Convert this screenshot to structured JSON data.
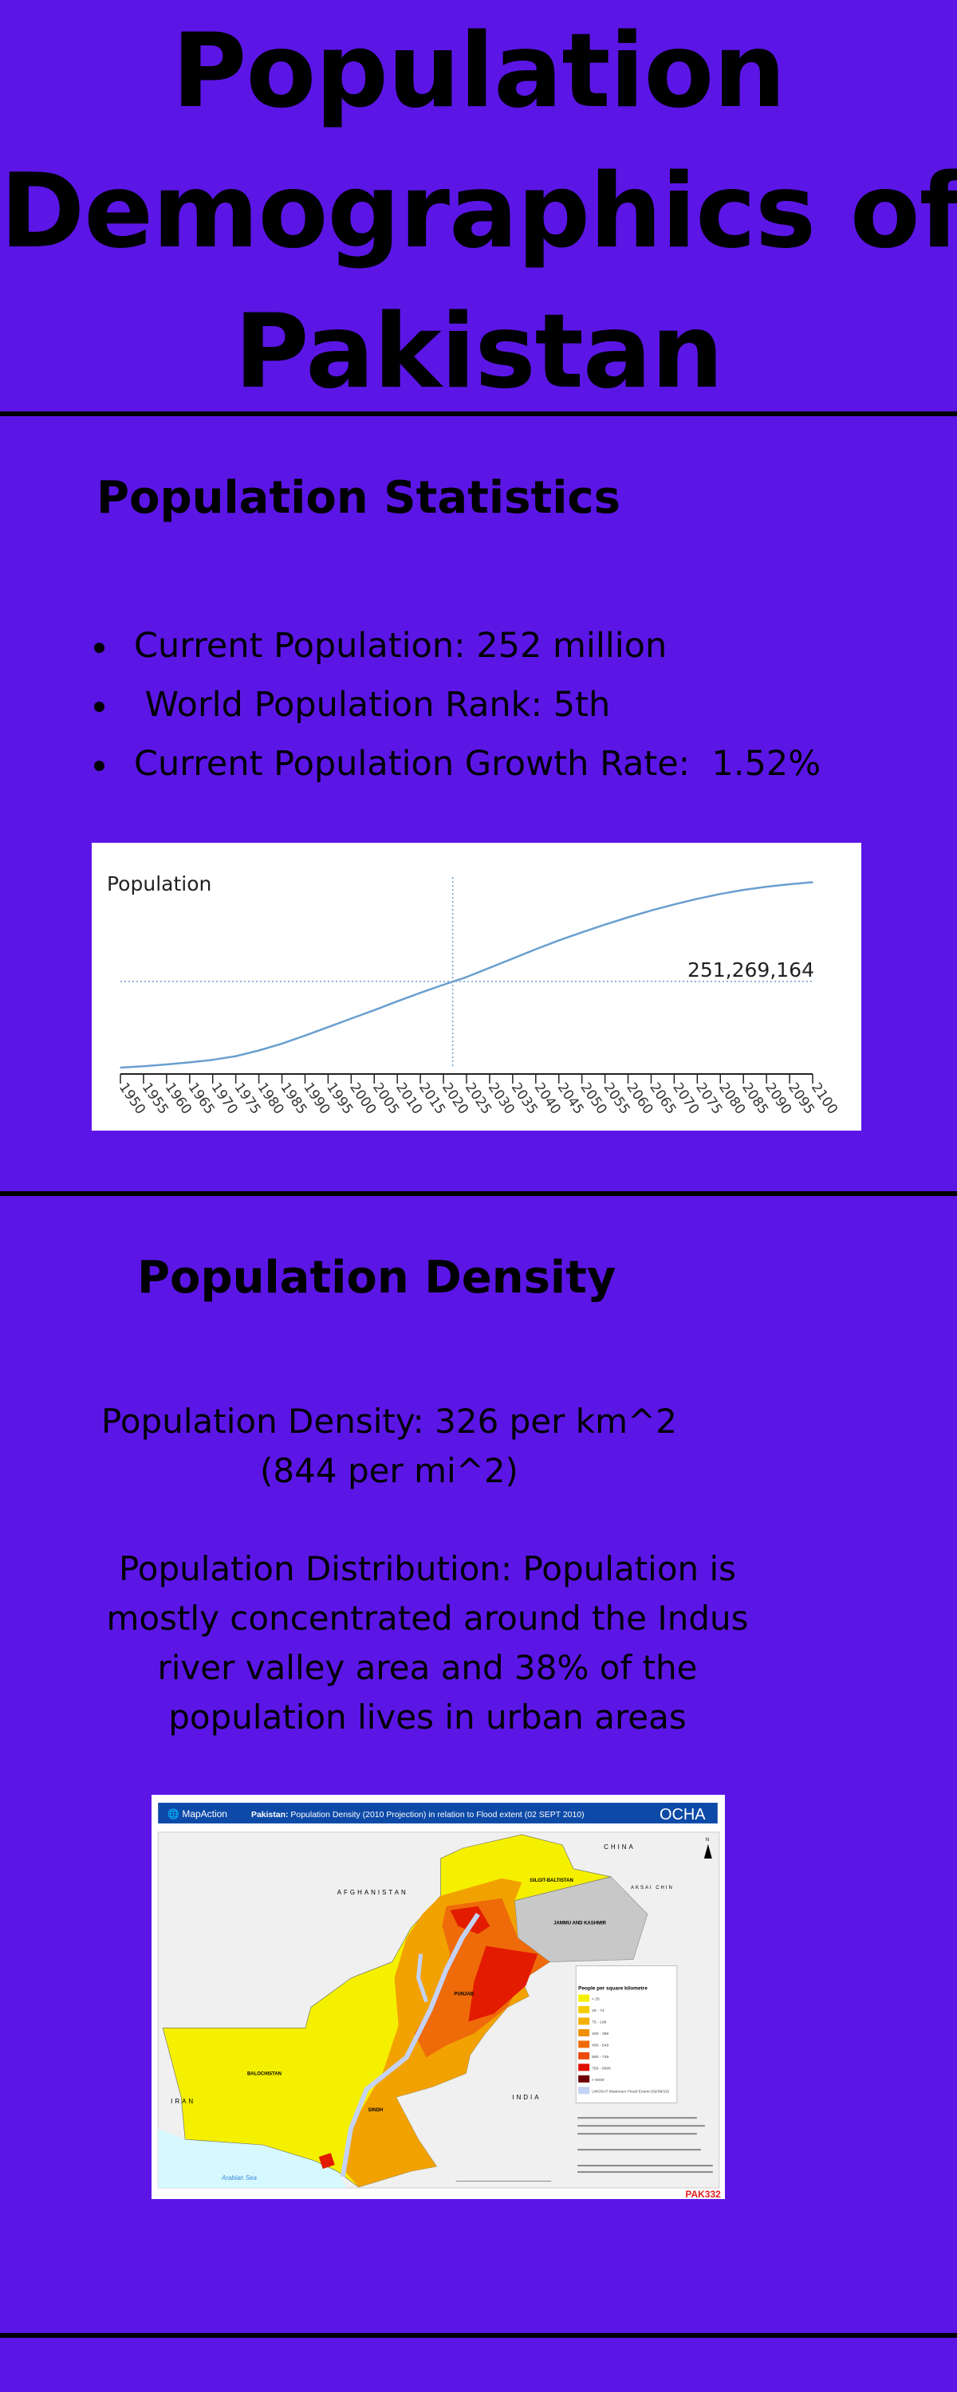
{
  "title": {
    "lines": [
      "Population",
      "Demographics of",
      "Pakistan"
    ]
  },
  "statistics": {
    "heading": "Population Statistics",
    "bullets": [
      "Current Population: 252 million",
      " World Population Rank: 5th",
      "Current Population Growth Rate:  1.52%"
    ]
  },
  "chart_data": {
    "type": "line",
    "title": "Population",
    "x": [
      1950,
      1955,
      1960,
      1965,
      1970,
      1975,
      1980,
      1985,
      1990,
      1995,
      2000,
      2005,
      2010,
      2015,
      2020,
      2025,
      2030,
      2035,
      2040,
      2045,
      2050,
      2055,
      2060,
      2065,
      2070,
      2075,
      2080,
      2085,
      2090,
      2095,
      2100
    ],
    "tick_labels": [
      "1950",
      "1955",
      "1960",
      "1965",
      "1970",
      "1975",
      "1980",
      "1985",
      "1990",
      "1995",
      "2000",
      "2005",
      "2010",
      "2015",
      "2020",
      "2025",
      "2030",
      "2035",
      "2040",
      "2045",
      "2050",
      "2055",
      "2060",
      "2065",
      "2070",
      "2075",
      "2080",
      "2085",
      "2090",
      "2095",
      "2100"
    ],
    "series": [
      {
        "values": [
          37500000,
          41000000,
          45500000,
          50500000,
          57000000,
          66000000,
          80000000,
          97000000,
          117000000,
          138000000,
          159000000,
          180000000,
          202000000,
          223000000,
          243000000,
          262000000,
          285000000,
          308000000,
          331000000,
          353000000,
          373000000,
          392000000,
          410000000,
          427000000,
          442000000,
          456000000,
          468000000,
          478000000,
          486000000,
          492000000,
          497000000
        ]
      }
    ],
    "marker": {
      "x": 2022,
      "value": 251269164,
      "label": "251,269,164"
    },
    "line_color": "#6a9fcf",
    "grid": false
  },
  "density": {
    "heading": "Population Density",
    "lines": [
      "Population Density:  326 per km^2",
      "(844 per mi^2)"
    ],
    "distribution": [
      "Population Distribution: Population is",
      "mostly concentrated around the Indus",
      "river valley area and 38% of the",
      "population lives in urban areas"
    ]
  },
  "map": {
    "brand": "MapAction",
    "title_bold": "Pakistan:",
    "title": " Population Density (2010 Projection) in relation to Flood extent (02 SEPT 2010)",
    "agency": "OCHA",
    "labels": {
      "china": "CHINA",
      "afghanistan": "AFGHANISTAN",
      "iran": "IRAN",
      "india": "INDIA",
      "aksai": "AKSAI CHIN",
      "kashmir": "JAMMU AND KASHMIR",
      "gilgit": "GILGIT-BALTISTAN",
      "balochistan": "BALOCHISTAN",
      "punjab": "PUNJAB",
      "sindh": "SINDH",
      "sea": "Arabian Sea",
      "north": "N"
    },
    "legend": {
      "title": "People per square kilometre",
      "items": [
        {
          "label": "< 25",
          "color": "#f5f000"
        },
        {
          "label": "25 - 74",
          "color": "#f5cc00"
        },
        {
          "label": "75 - 199",
          "color": "#f2b000"
        },
        {
          "label": "200 - 399",
          "color": "#f09000"
        },
        {
          "label": "400 - 549",
          "color": "#ef6b0a"
        },
        {
          "label": "550 - 749",
          "color": "#ec4a0a"
        },
        {
          "label": "750 - 5000",
          "color": "#e01000"
        },
        {
          "label": "> 5000",
          "color": "#700000"
        },
        {
          "label": "UNOSAT Maximum Flood Extent (02/09/10)",
          "color": "#c4d2f4"
        }
      ]
    },
    "doc_name": "PAK332",
    "colors": {
      "header": "#0d4aa8",
      "land": "#f0f0f0",
      "sea": "#d6f8ff"
    }
  },
  "colors": {
    "background": "#5b16e6",
    "divider": "#000000"
  }
}
